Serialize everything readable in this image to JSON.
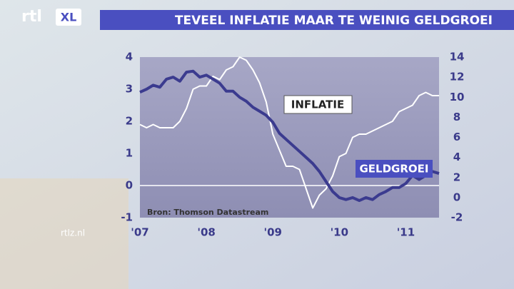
{
  "branding": {
    "logo": "rtl",
    "logo_badge": "XL",
    "website": "rtlz.nl"
  },
  "chart_data": {
    "type": "line",
    "title": "TEVEEL INFLATIE MAAR TE WEINIG GELDGROEI",
    "source": "Bron: Thomson Datastream",
    "x": [
      2007.0,
      2007.1,
      2007.2,
      2007.3,
      2007.4,
      2007.5,
      2007.6,
      2007.7,
      2007.8,
      2007.9,
      2008.0,
      2008.1,
      2008.2,
      2008.3,
      2008.4,
      2008.5,
      2008.6,
      2008.7,
      2008.8,
      2008.9,
      2009.0,
      2009.1,
      2009.2,
      2009.3,
      2009.4,
      2009.5,
      2009.6,
      2009.7,
      2009.8,
      2009.9,
      2010.0,
      2010.1,
      2010.2,
      2010.3,
      2010.4,
      2010.5,
      2010.6,
      2010.7,
      2010.8,
      2010.9,
      2011.0,
      2011.1,
      2011.2,
      2011.3,
      2011.4,
      2011.5
    ],
    "series": [
      {
        "name": "INFLATIE",
        "color": "#ffffff",
        "axis": "y",
        "values": [
          1.9,
          1.8,
          1.9,
          1.8,
          1.8,
          1.8,
          2.0,
          2.4,
          3.0,
          3.1,
          3.1,
          3.4,
          3.3,
          3.6,
          3.7,
          4.0,
          3.9,
          3.6,
          3.2,
          2.6,
          1.6,
          1.1,
          0.6,
          0.6,
          0.5,
          -0.1,
          -0.7,
          -0.3,
          -0.1,
          0.3,
          0.9,
          1.0,
          1.5,
          1.6,
          1.6,
          1.7,
          1.8,
          1.9,
          2.0,
          2.3,
          2.4,
          2.5,
          2.8,
          2.9,
          2.8,
          2.8
        ]
      },
      {
        "name": "GELDGROEI",
        "color": "#3b3b8f",
        "axis": "y2",
        "values": [
          10.5,
          10.8,
          11.2,
          11.0,
          11.8,
          12.0,
          11.6,
          12.5,
          12.6,
          12.0,
          12.2,
          11.8,
          11.4,
          10.6,
          10.6,
          10.0,
          9.6,
          9.0,
          8.6,
          8.2,
          7.5,
          6.4,
          5.8,
          5.2,
          4.6,
          4.0,
          3.4,
          2.6,
          1.6,
          0.6,
          0.0,
          -0.2,
          0.0,
          -0.3,
          0.0,
          -0.2,
          0.3,
          0.6,
          1.0,
          1.0,
          1.4,
          2.2,
          1.8,
          2.2,
          2.6,
          2.4
        ]
      }
    ],
    "xlim": [
      2007,
      2011.5
    ],
    "xticks": [
      {
        "value": 2007,
        "label": "'07"
      },
      {
        "value": 2008,
        "label": "'08"
      },
      {
        "value": 2009,
        "label": "'09"
      },
      {
        "value": 2010,
        "label": "'10"
      },
      {
        "value": 2011,
        "label": "'11"
      }
    ],
    "ylim": [
      -1,
      4
    ],
    "yticks": [
      -1,
      0,
      1,
      2,
      3,
      4
    ],
    "y2lim": [
      -2,
      14
    ],
    "y2ticks": [
      -2,
      0,
      2,
      4,
      6,
      8,
      10,
      12,
      14
    ],
    "zero_line": true
  }
}
